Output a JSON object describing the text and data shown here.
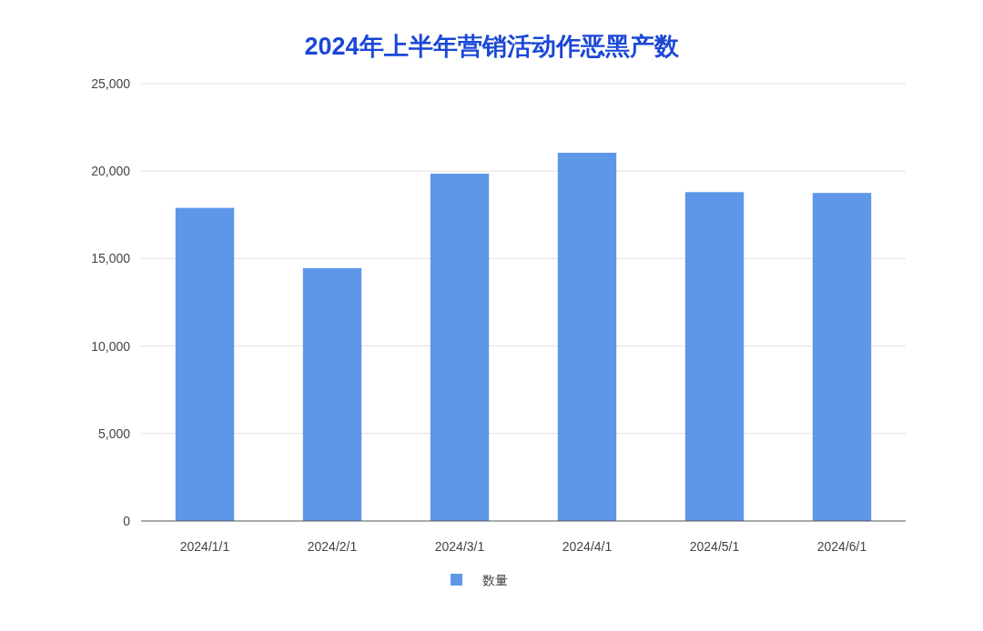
{
  "chart_data": {
    "type": "bar",
    "title": "2024年上半年营销活动作恶黑产数",
    "categories": [
      "2024/1/1",
      "2024/2/1",
      "2024/3/1",
      "2024/4/1",
      "2024/5/1",
      "2024/6/1"
    ],
    "series": [
      {
        "name": "数量",
        "color": "#5e96e8",
        "values": [
          17900,
          14450,
          19850,
          21050,
          18800,
          18750
        ]
      }
    ],
    "ylim": [
      0,
      25000
    ],
    "yticks": [
      0,
      {
        "value": 5000,
        "label": "5,000"
      },
      {
        "value": 10000,
        "label": "10,000"
      },
      {
        "value": 15000,
        "label": "15,000"
      },
      {
        "value": 20000,
        "label": "20,000"
      },
      {
        "value": 25000,
        "label": "25,000"
      }
    ],
    "grid": "y",
    "legend": "bottom"
  }
}
